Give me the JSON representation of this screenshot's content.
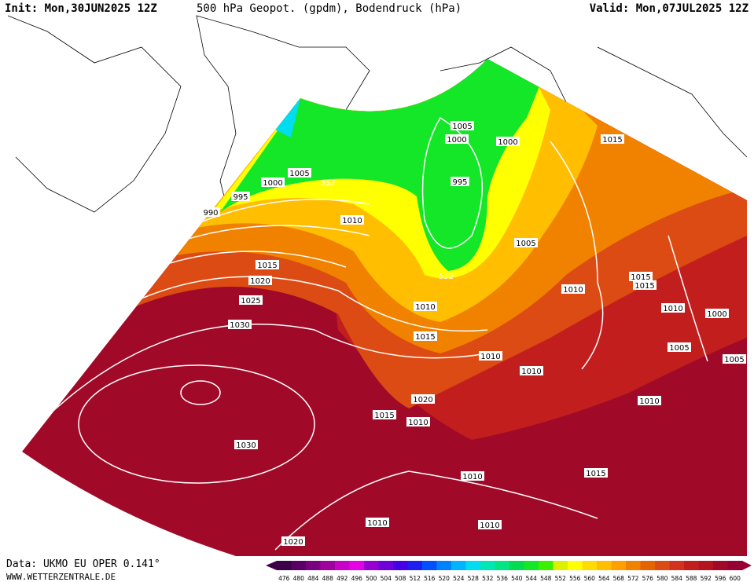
{
  "header": {
    "init": "Init: Mon,30JUN2025 12Z",
    "title": "500 hPa Geopot. (gpdm), Bodendruck (hPa)",
    "valid": "Valid: Mon,07JUL2025 12Z"
  },
  "isobar_labels": [
    "1005",
    "1000",
    "1000",
    "1015",
    "1005",
    "1000",
    "995",
    "995",
    "990",
    "1010",
    "1005",
    "1015",
    "1020",
    "1015",
    "1015",
    "1010",
    "1025",
    "1010",
    "1010",
    "1000",
    "1030",
    "1015",
    "1005",
    "1010",
    "1005",
    "1010",
    "1020",
    "1010",
    "1015",
    "1010",
    "1030",
    "1015",
    "1010",
    "1010",
    "1010",
    "1020"
  ],
  "contour_labels": [
    "552",
    "552"
  ],
  "colorbar": {
    "labels": [
      "476",
      "480",
      "484",
      "488",
      "492",
      "496",
      "500",
      "504",
      "508",
      "512",
      "516",
      "520",
      "524",
      "528",
      "532",
      "536",
      "540",
      "544",
      "548",
      "552",
      "556",
      "560",
      "564",
      "568",
      "572",
      "576",
      "580",
      "584",
      "588",
      "592",
      "596",
      "600"
    ],
    "colors": [
      "#3c0046",
      "#5a0064",
      "#7a0082",
      "#a000a0",
      "#c800c8",
      "#e600e6",
      "#9600d2",
      "#6e00dc",
      "#4600e6",
      "#1e1ef0",
      "#0050ff",
      "#0082ff",
      "#00b4ff",
      "#00dcf0",
      "#00e6b4",
      "#00e682",
      "#00dc50",
      "#14e628",
      "#3cf000",
      "#dcf000",
      "#ffff00",
      "#ffdc00",
      "#ffbe00",
      "#ffa000",
      "#f08200",
      "#e66400",
      "#dc4b14",
      "#d2321e",
      "#c31e1e",
      "#b4141e",
      "#a00a28",
      "#960032"
    ]
  },
  "footer": {
    "data": "Data: UKMO EU OPER 0.141°",
    "site": "WWW.WETTERZENTRALE.DE"
  }
}
